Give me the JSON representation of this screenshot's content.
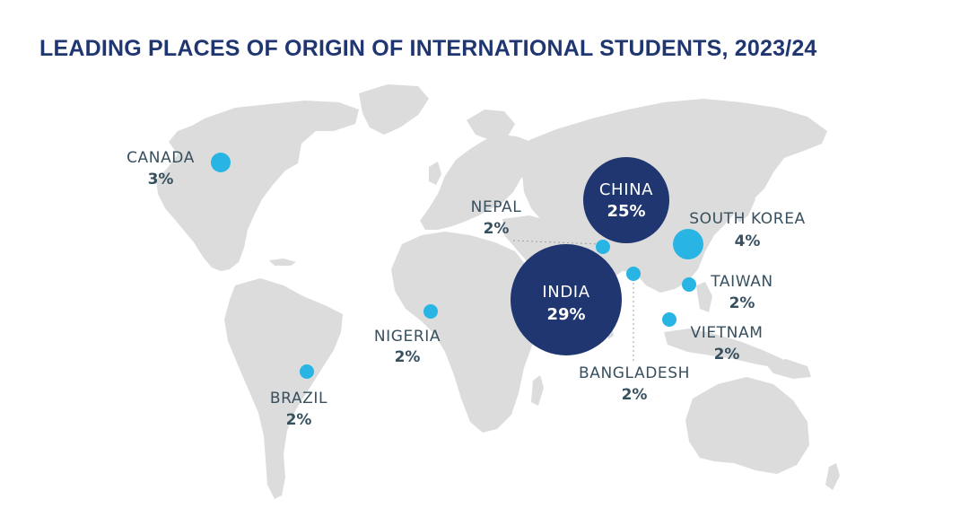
{
  "title": "LEADING PLACES OF ORIGIN OF INTERNATIONAL STUDENTS, 2023/24",
  "colors": {
    "title": "#1f3670",
    "land": "#dcdcdc",
    "large_bubble": "#1f3670",
    "small_bubble": "#29b5e3",
    "label_text": "#37505f"
  },
  "places": [
    {
      "name": "CANADA",
      "pct": "3%",
      "value": 3
    },
    {
      "name": "NEPAL",
      "pct": "2%",
      "value": 2
    },
    {
      "name": "CHINA",
      "pct": "25%",
      "value": 25
    },
    {
      "name": "SOUTH KOREA",
      "pct": "4%",
      "value": 4
    },
    {
      "name": "INDIA",
      "pct": "29%",
      "value": 29
    },
    {
      "name": "TAIWAN",
      "pct": "2%",
      "value": 2
    },
    {
      "name": "NIGERIA",
      "pct": "2%",
      "value": 2
    },
    {
      "name": "VIETNAM",
      "pct": "2%",
      "value": 2
    },
    {
      "name": "BANGLADESH",
      "pct": "2%",
      "value": 2
    },
    {
      "name": "BRAZIL",
      "pct": "2%",
      "value": 2
    }
  ]
}
